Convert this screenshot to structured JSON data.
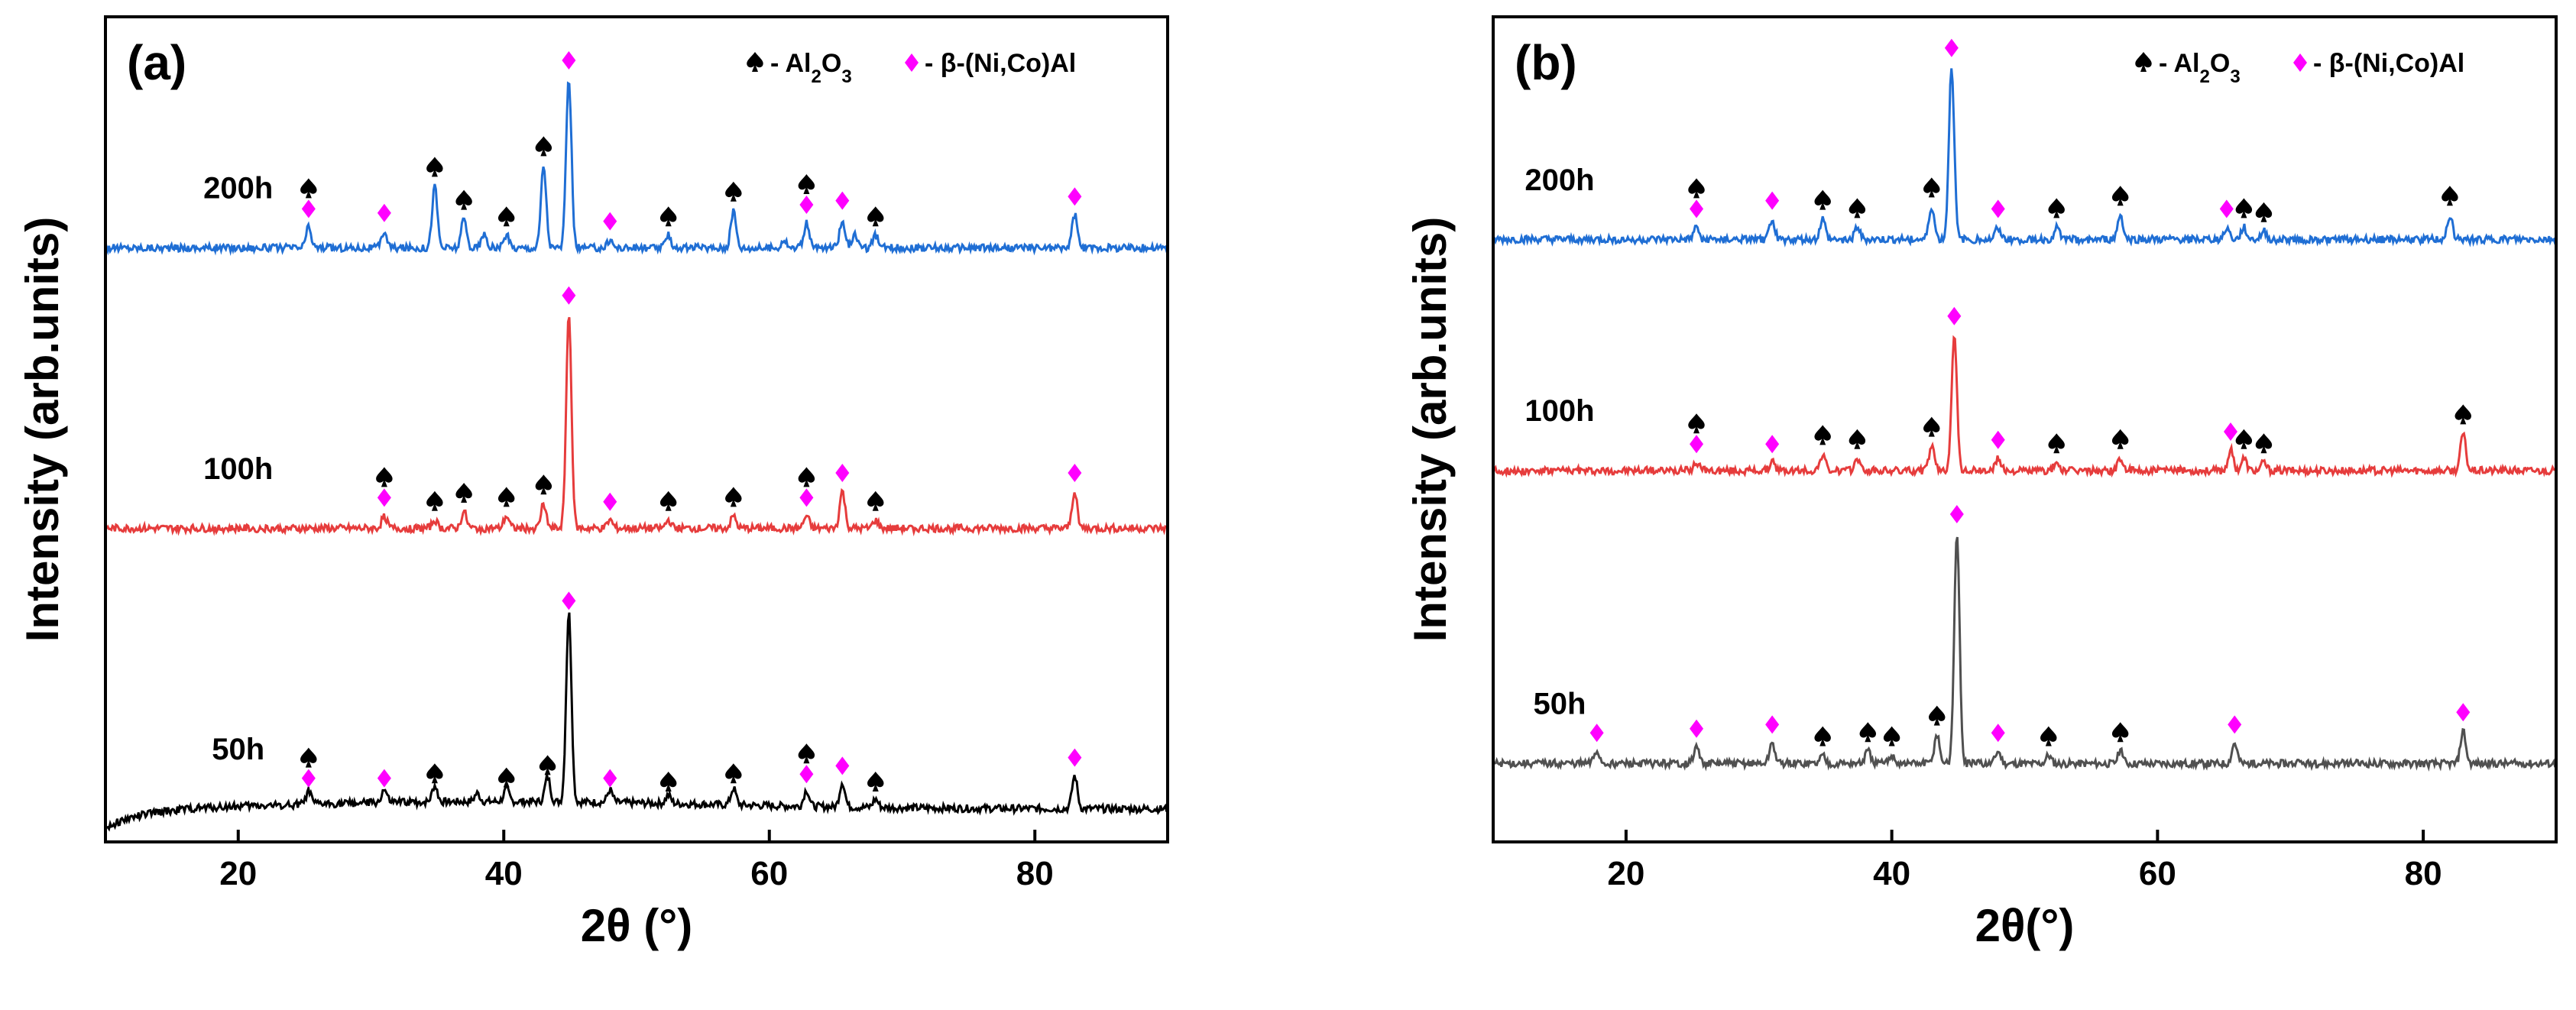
{
  "figure": {
    "legend": {
      "entries": [
        {
          "name": "al2o3",
          "marker": "spade-icon",
          "prefix": "- Al",
          "sub1": "2",
          "mid": "O",
          "sub2": "3",
          "color": "#000000"
        },
        {
          "name": "beta",
          "marker": "diamond-icon",
          "text": "- β-(Ni,Co)Al",
          "color": "#ff00ff"
        }
      ]
    }
  },
  "chart_data": [
    {
      "id": "a",
      "type": "line",
      "panel_label": "(a)",
      "xlabel": "2θ (°)",
      "ylabel": "Intensity (arb.units)",
      "xlim": [
        10,
        90
      ],
      "ylim": [
        0,
        100
      ],
      "xticks": [
        20,
        40,
        60,
        80
      ],
      "grid": false,
      "legend_position": "top-right",
      "series": [
        {
          "name": "200h",
          "color": "#1f6ed4",
          "baseline": 72,
          "label_x": 20,
          "peaks": [
            [
              25.3,
              2.5
            ],
            [
              31.0,
              2.0
            ],
            [
              34.8,
              7.5
            ],
            [
              37.0,
              3.5
            ],
            [
              38.5,
              1.5
            ],
            [
              40.2,
              1.5
            ],
            [
              43.0,
              10.0
            ],
            [
              44.9,
              20.5
            ],
            [
              48.0,
              1.0
            ],
            [
              52.4,
              1.5
            ],
            [
              57.3,
              4.5
            ],
            [
              61.1,
              1.0
            ],
            [
              62.8,
              3.0
            ],
            [
              65.5,
              3.5
            ],
            [
              66.4,
              1.5
            ],
            [
              68.0,
              1.5
            ],
            [
              83.0,
              4.0
            ]
          ],
          "markers": [
            {
              "x": 25.3,
              "types": [
                "spade",
                "diamond"
              ]
            },
            {
              "x": 31.0,
              "types": [
                "diamond"
              ]
            },
            {
              "x": 34.8,
              "types": [
                "spade"
              ]
            },
            {
              "x": 37.0,
              "types": [
                "spade"
              ]
            },
            {
              "x": 40.2,
              "types": [
                "spade"
              ]
            },
            {
              "x": 43.0,
              "types": [
                "spade"
              ]
            },
            {
              "x": 44.9,
              "types": [
                "diamond"
              ]
            },
            {
              "x": 48.0,
              "types": [
                "diamond"
              ]
            },
            {
              "x": 52.4,
              "types": [
                "spade"
              ]
            },
            {
              "x": 57.3,
              "types": [
                "spade"
              ]
            },
            {
              "x": 62.8,
              "types": [
                "spade",
                "diamond"
              ]
            },
            {
              "x": 65.5,
              "types": [
                "diamond"
              ]
            },
            {
              "x": 68.0,
              "types": [
                "spade"
              ]
            },
            {
              "x": 83.0,
              "types": [
                "diamond"
              ]
            }
          ]
        },
        {
          "name": "100h",
          "color": "#e63c3c",
          "baseline": 38,
          "label_x": 20,
          "peaks": [
            [
              31.0,
              1.5
            ],
            [
              34.8,
              1.0
            ],
            [
              37.0,
              2.0
            ],
            [
              40.2,
              1.5
            ],
            [
              43.0,
              3.0
            ],
            [
              44.9,
              26.0
            ],
            [
              48.0,
              1.0
            ],
            [
              52.4,
              1.0
            ],
            [
              57.3,
              1.5
            ],
            [
              62.8,
              1.5
            ],
            [
              65.5,
              4.5
            ],
            [
              68.0,
              1.0
            ],
            [
              83.0,
              4.5
            ]
          ],
          "markers": [
            {
              "x": 31.0,
              "types": [
                "spade",
                "diamond"
              ]
            },
            {
              "x": 34.8,
              "types": [
                "spade"
              ]
            },
            {
              "x": 37.0,
              "types": [
                "spade"
              ]
            },
            {
              "x": 40.2,
              "types": [
                "spade"
              ]
            },
            {
              "x": 43.0,
              "types": [
                "spade"
              ]
            },
            {
              "x": 44.9,
              "types": [
                "diamond"
              ]
            },
            {
              "x": 48.0,
              "types": [
                "diamond"
              ]
            },
            {
              "x": 52.4,
              "types": [
                "spade"
              ]
            },
            {
              "x": 57.3,
              "types": [
                "spade"
              ]
            },
            {
              "x": 62.8,
              "types": [
                "spade",
                "diamond"
              ]
            },
            {
              "x": 65.5,
              "types": [
                "diamond"
              ]
            },
            {
              "x": 68.0,
              "types": [
                "spade"
              ]
            },
            {
              "x": 83.0,
              "types": [
                "diamond"
              ]
            }
          ]
        },
        {
          "name": "50h",
          "color": "#000000",
          "baseline": 4,
          "label_x": 20,
          "background_rise": 3,
          "peaks": [
            [
              25.3,
              1.5
            ],
            [
              31.0,
              1.5
            ],
            [
              34.8,
              2.0
            ],
            [
              38.0,
              1.0
            ],
            [
              40.2,
              1.5
            ],
            [
              43.3,
              3.0
            ],
            [
              44.9,
              23.0
            ],
            [
              48.0,
              1.5
            ],
            [
              52.4,
              1.0
            ],
            [
              57.3,
              2.0
            ],
            [
              62.8,
              2.0
            ],
            [
              65.5,
              3.0
            ],
            [
              68.0,
              1.0
            ],
            [
              83.0,
              4.0
            ]
          ],
          "markers": [
            {
              "x": 25.3,
              "types": [
                "spade",
                "diamond"
              ]
            },
            {
              "x": 31.0,
              "types": [
                "diamond"
              ]
            },
            {
              "x": 34.8,
              "types": [
                "spade"
              ]
            },
            {
              "x": 40.2,
              "types": [
                "spade"
              ]
            },
            {
              "x": 43.3,
              "types": [
                "spade"
              ]
            },
            {
              "x": 44.9,
              "types": [
                "diamond"
              ]
            },
            {
              "x": 48.0,
              "types": [
                "diamond"
              ]
            },
            {
              "x": 52.4,
              "types": [
                "spade"
              ]
            },
            {
              "x": 57.3,
              "types": [
                "spade"
              ]
            },
            {
              "x": 62.8,
              "types": [
                "spade",
                "diamond"
              ]
            },
            {
              "x": 65.5,
              "types": [
                "diamond"
              ]
            },
            {
              "x": 68.0,
              "types": [
                "spade"
              ]
            },
            {
              "x": 83.0,
              "types": [
                "diamond"
              ]
            }
          ]
        }
      ]
    },
    {
      "id": "b",
      "type": "line",
      "panel_label": "(b)",
      "xlabel": "2θ(°)",
      "ylabel": "Intensity (arb.units)",
      "xlim": [
        10,
        90
      ],
      "ylim": [
        0,
        100
      ],
      "xticks": [
        20,
        40,
        60,
        80
      ],
      "grid": false,
      "legend_position": "top-right",
      "series": [
        {
          "name": "200h",
          "color": "#1f6ed4",
          "baseline": 73,
          "label_x": 15,
          "peaks": [
            [
              25.3,
              1.5
            ],
            [
              31.0,
              2.5
            ],
            [
              34.8,
              2.5
            ],
            [
              37.4,
              1.5
            ],
            [
              43.0,
              4.0
            ],
            [
              44.5,
              21.0
            ],
            [
              48.0,
              1.5
            ],
            [
              52.4,
              1.5
            ],
            [
              57.2,
              3.0
            ],
            [
              65.2,
              1.5
            ],
            [
              66.5,
              1.5
            ],
            [
              68.0,
              1.0
            ],
            [
              82.0,
              3.0
            ]
          ],
          "markers": [
            {
              "x": 25.3,
              "types": [
                "spade",
                "diamond"
              ]
            },
            {
              "x": 31.0,
              "types": [
                "diamond"
              ]
            },
            {
              "x": 34.8,
              "types": [
                "spade"
              ]
            },
            {
              "x": 37.4,
              "types": [
                "spade"
              ]
            },
            {
              "x": 43.0,
              "types": [
                "spade"
              ]
            },
            {
              "x": 44.5,
              "types": [
                "diamond"
              ]
            },
            {
              "x": 48.0,
              "types": [
                "diamond"
              ]
            },
            {
              "x": 52.4,
              "types": [
                "spade"
              ]
            },
            {
              "x": 57.2,
              "types": [
                "spade"
              ]
            },
            {
              "x": 65.2,
              "types": [
                "diamond"
              ]
            },
            {
              "x": 66.5,
              "types": [
                "spade"
              ]
            },
            {
              "x": 68.0,
              "types": [
                "spade"
              ]
            },
            {
              "x": 82.0,
              "types": [
                "spade"
              ]
            }
          ]
        },
        {
          "name": "100h",
          "color": "#e63c3c",
          "baseline": 45,
          "label_x": 15,
          "peaks": [
            [
              25.3,
              1.0
            ],
            [
              31.0,
              1.0
            ],
            [
              34.8,
              2.0
            ],
            [
              37.4,
              1.5
            ],
            [
              43.0,
              3.0
            ],
            [
              44.7,
              16.5
            ],
            [
              48.0,
              1.5
            ],
            [
              52.4,
              1.0
            ],
            [
              57.2,
              1.5
            ],
            [
              65.5,
              2.5
            ],
            [
              66.5,
              1.5
            ],
            [
              68.0,
              1.0
            ],
            [
              83.0,
              4.5
            ]
          ],
          "markers": [
            {
              "x": 25.3,
              "types": [
                "spade",
                "diamond"
              ]
            },
            {
              "x": 31.0,
              "types": [
                "diamond"
              ]
            },
            {
              "x": 34.8,
              "types": [
                "spade"
              ]
            },
            {
              "x": 37.4,
              "types": [
                "spade"
              ]
            },
            {
              "x": 43.0,
              "types": [
                "spade"
              ]
            },
            {
              "x": 44.7,
              "types": [
                "diamond"
              ]
            },
            {
              "x": 48.0,
              "types": [
                "diamond"
              ]
            },
            {
              "x": 52.4,
              "types": [
                "spade"
              ]
            },
            {
              "x": 57.2,
              "types": [
                "spade"
              ]
            },
            {
              "x": 65.5,
              "types": [
                "diamond"
              ]
            },
            {
              "x": 66.5,
              "types": [
                "spade"
              ]
            },
            {
              "x": 68.0,
              "types": [
                "spade"
              ]
            },
            {
              "x": 83.0,
              "types": [
                "spade"
              ]
            }
          ]
        },
        {
          "name": "50h",
          "color": "#505050",
          "baseline": 9.5,
          "label_x": 15,
          "peaks": [
            [
              17.8,
              1.5
            ],
            [
              25.3,
              2.0
            ],
            [
              31.0,
              2.5
            ],
            [
              34.8,
              1.0
            ],
            [
              38.2,
              1.5
            ],
            [
              40.0,
              1.0
            ],
            [
              43.4,
              3.5
            ],
            [
              44.9,
              28.0
            ],
            [
              48.0,
              1.5
            ],
            [
              51.8,
              1.0
            ],
            [
              57.2,
              1.5
            ],
            [
              65.8,
              2.5
            ],
            [
              83.0,
              4.0
            ]
          ],
          "markers": [
            {
              "x": 17.8,
              "types": [
                "diamond"
              ]
            },
            {
              "x": 25.3,
              "types": [
                "diamond"
              ]
            },
            {
              "x": 31.0,
              "types": [
                "diamond"
              ]
            },
            {
              "x": 34.8,
              "types": [
                "spade"
              ]
            },
            {
              "x": 38.2,
              "types": [
                "spade"
              ]
            },
            {
              "x": 40.0,
              "types": [
                "spade"
              ]
            },
            {
              "x": 43.4,
              "types": [
                "spade"
              ]
            },
            {
              "x": 44.9,
              "types": [
                "diamond"
              ]
            },
            {
              "x": 48.0,
              "types": [
                "diamond"
              ]
            },
            {
              "x": 51.8,
              "types": [
                "spade"
              ]
            },
            {
              "x": 57.2,
              "types": [
                "spade"
              ]
            },
            {
              "x": 65.8,
              "types": [
                "diamond"
              ]
            },
            {
              "x": 83.0,
              "types": [
                "diamond"
              ]
            }
          ]
        }
      ]
    }
  ]
}
